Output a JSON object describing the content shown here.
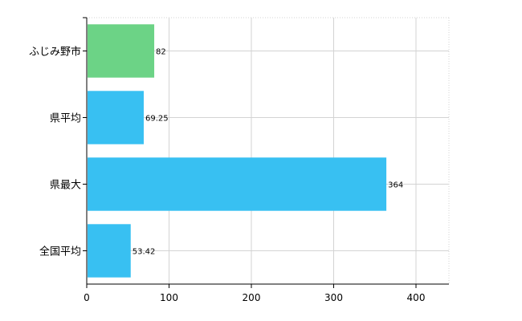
{
  "chart_data": {
    "type": "bar",
    "orientation": "horizontal",
    "categories": [
      "ふじみ野市",
      "県平均",
      "県最大",
      "全国平均"
    ],
    "values": [
      82,
      69.25,
      364,
      53.42
    ],
    "value_labels": [
      "82",
      "69.25",
      "364",
      "53.42"
    ],
    "bar_colors": [
      "#6cd386",
      "#38c0f2",
      "#38c0f2",
      "#38c0f2"
    ],
    "xlim": [
      0,
      440
    ],
    "xticks": [
      0,
      100,
      200,
      300,
      400
    ],
    "xtick_labels": [
      "0",
      "100",
      "200",
      "300",
      "400"
    ],
    "grid": true,
    "legend": "none"
  }
}
